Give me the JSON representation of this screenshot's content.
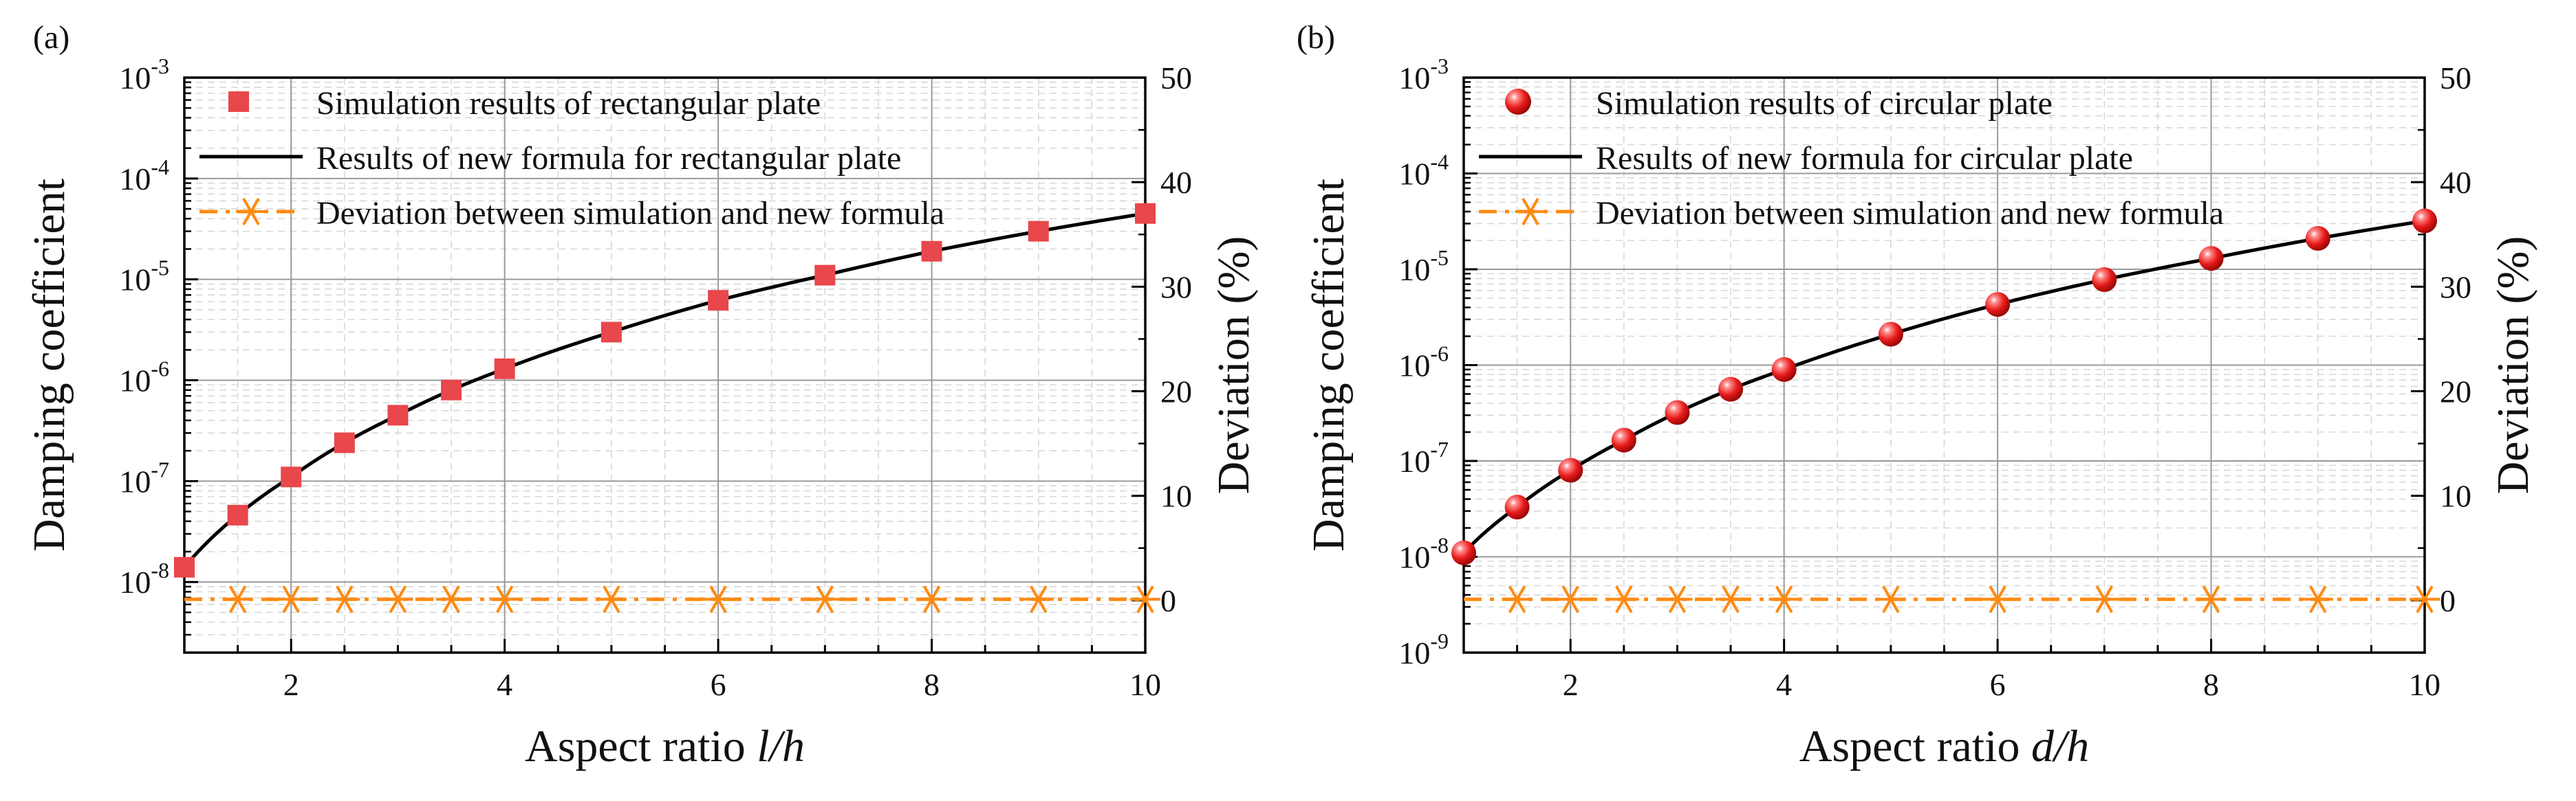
{
  "colors": {
    "marker_red": "#e8474b",
    "sphere_red": "#e81c1c",
    "curve": "#000000",
    "deviation": "#ff8a10",
    "grid_major": "#9a9a9a",
    "grid_minor": "#d8d8d8"
  },
  "chart_data": [
    {
      "type": "line",
      "panel_label": "(a)",
      "xlabel_prefix": "Aspect ratio ",
      "xlabel_var": "l/h",
      "ylabel": "Damping coefficient",
      "y2label": "Deviation (%)",
      "xlim": [
        1,
        10
      ],
      "ylim_log": [
        -8.7,
        -3
      ],
      "y2lim": [
        -5,
        50
      ],
      "x_ticks": [
        2,
        4,
        6,
        8,
        10
      ],
      "y_ticks": [
        -8,
        -7,
        -6,
        -5,
        -4,
        -3
      ],
      "y_tick_base": "10",
      "y2_ticks": [
        0,
        10,
        20,
        30,
        40,
        50
      ],
      "marker": "square",
      "legend": [
        "Simulation results of rectangular plate",
        "Results of new formula for rectangular plate",
        "Deviation between simulation and new formula"
      ],
      "series": [
        {
          "name": "Simulation results of rectangular plate",
          "x": [
            1,
            1.5,
            2,
            2.5,
            3,
            3.5,
            4,
            5,
            6,
            7,
            8,
            9,
            10
          ],
          "y": [
            1.4e-08,
            4.6e-08,
            1.1e-07,
            2.4e-07,
            4.5e-07,
            8e-07,
            1.3e-06,
            3e-06,
            6.2e-06,
            1.1e-05,
            1.9e-05,
            3e-05,
            4.5e-05
          ]
        },
        {
          "name": "Results of new formula for rectangular plate",
          "x": [
            1,
            1.5,
            2,
            2.5,
            3,
            3.5,
            4,
            5,
            6,
            7,
            8,
            9,
            10
          ],
          "y": [
            1.4e-08,
            4.6e-08,
            1.1e-07,
            2.4e-07,
            4.5e-07,
            8e-07,
            1.3e-06,
            3e-06,
            6.2e-06,
            1.1e-05,
            1.9e-05,
            3e-05,
            4.5e-05
          ]
        },
        {
          "name": "Deviation between simulation and new formula",
          "axis": "right",
          "x": [
            1,
            1.5,
            2,
            2.5,
            3,
            3.5,
            4,
            5,
            6,
            7,
            8,
            9,
            10
          ],
          "y": [
            0.1,
            0.1,
            0.1,
            0.1,
            0.1,
            0.1,
            0.1,
            0.1,
            0.1,
            0.1,
            0.1,
            0.1,
            0.1
          ]
        }
      ]
    },
    {
      "type": "line",
      "panel_label": "(b)",
      "xlabel_prefix": "Aspect ratio ",
      "xlabel_var": "d/h",
      "ylabel": "Damping coefficient",
      "y2label": "Deviation (%)",
      "xlim": [
        1,
        10
      ],
      "ylim_log": [
        -9,
        -3
      ],
      "y2lim": [
        -5,
        50
      ],
      "x_ticks": [
        2,
        4,
        6,
        8,
        10
      ],
      "y_ticks": [
        -9,
        -8,
        -7,
        -6,
        -5,
        -4,
        -3
      ],
      "y_tick_base": "10",
      "y2_ticks": [
        0,
        10,
        20,
        30,
        40,
        50
      ],
      "marker": "sphere",
      "legend": [
        "Simulation results of circular plate",
        "Results of new formula for circular plate",
        "Deviation between simulation and new formula"
      ],
      "series": [
        {
          "name": "Simulation results of circular plate",
          "x": [
            1,
            1.5,
            2,
            2.5,
            3,
            3.5,
            4,
            5,
            6,
            7,
            8,
            9,
            10
          ],
          "y": [
            1.1e-08,
            3.3e-08,
            8e-08,
            1.65e-07,
            3.2e-07,
            5.6e-07,
            9e-07,
            2.1e-06,
            4.3e-06,
            7.8e-06,
            1.3e-05,
            2.1e-05,
            3.2e-05
          ]
        },
        {
          "name": "Results of new formula for circular plate",
          "x": [
            1,
            1.5,
            2,
            2.5,
            3,
            3.5,
            4,
            5,
            6,
            7,
            8,
            9,
            10
          ],
          "y": [
            1.1e-08,
            3.3e-08,
            8e-08,
            1.65e-07,
            3.2e-07,
            5.6e-07,
            9e-07,
            2.1e-06,
            4.3e-06,
            7.8e-06,
            1.3e-05,
            2.1e-05,
            3.2e-05
          ]
        },
        {
          "name": "Deviation between simulation and new formula",
          "axis": "right",
          "x": [
            1,
            1.5,
            2,
            2.5,
            3,
            3.5,
            4,
            5,
            6,
            7,
            8,
            9,
            10
          ],
          "y": [
            0.1,
            0.1,
            0.1,
            0.1,
            0.1,
            0.1,
            0.1,
            0.1,
            0.1,
            0.1,
            0.1,
            0.1,
            0.1
          ]
        }
      ]
    }
  ]
}
